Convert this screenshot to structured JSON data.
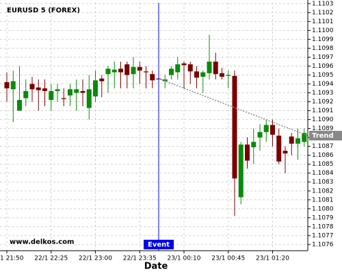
{
  "chart_data": {
    "type": "candlestick",
    "title": "EURUSD 5 (FOREX)",
    "watermark": "www.delkos.com",
    "x_label": "Date",
    "categories": [
      "22/1 21:50",
      null,
      null,
      null,
      null,
      null,
      null,
      "22/1 22:25",
      null,
      null,
      null,
      null,
      null,
      null,
      "22/1 23:00",
      null,
      null,
      null,
      null,
      null,
      null,
      "22/1 23:35",
      null,
      null,
      null,
      null,
      null,
      null,
      "23/1 00:10",
      null,
      null,
      null,
      null,
      null,
      null,
      "23/1 00:45",
      null,
      null,
      null,
      null,
      null,
      null,
      "23/1 01:20",
      null,
      null,
      null,
      null,
      null
    ],
    "open": [
      1.10942,
      1.10934,
      1.1091,
      1.10924,
      1.1094,
      1.10936,
      1.10935,
      1.10922,
      1.10932,
      1.10924,
      1.10927,
      1.1093,
      1.10932,
      1.10913,
      1.10926,
      1.10946,
      1.10951,
      1.10953,
      1.10957,
      1.10962,
      1.10951,
      1.10959,
      1.10954,
      1.10951,
      1.10946,
      1.10943,
      1.1095,
      1.10953,
      1.10963,
      1.10962,
      1.10954,
      1.10948,
      1.10952,
      1.10965,
      1.10952,
      1.10949,
      1.10949,
      1.10813,
      1.10872,
      1.10869,
      1.1088,
      1.10886,
      1.10894,
      1.10882,
      1.10865,
      1.10881,
      1.10873,
      1.10875
    ],
    "high": [
      1.10953,
      1.10955,
      1.1096,
      1.10945,
      1.10948,
      1.10945,
      1.10945,
      1.1094,
      1.1094,
      1.10935,
      1.1094,
      1.10945,
      1.10945,
      1.1095,
      1.10955,
      1.1095,
      1.1096,
      1.10965,
      1.10965,
      1.10965,
      1.1097,
      1.10965,
      1.1096,
      1.10955,
      1.10948,
      1.1095,
      1.1096,
      1.1097,
      1.10965,
      1.10965,
      1.1096,
      1.10955,
      1.10995,
      1.10975,
      1.10958,
      1.10955,
      1.10955,
      1.10875,
      1.1088,
      1.1089,
      1.10895,
      1.109,
      1.109,
      1.1089,
      1.1087,
      1.10885,
      1.1089,
      1.1089
    ],
    "low": [
      1.1092,
      1.10897,
      1.1091,
      1.10915,
      1.1092,
      1.1091,
      1.10915,
      1.1091,
      1.1092,
      1.10915,
      1.10915,
      1.1091,
      1.10915,
      1.109,
      1.1092,
      1.10925,
      1.1093,
      1.10935,
      1.10935,
      1.10935,
      1.10935,
      1.1094,
      1.10935,
      1.10935,
      1.10944,
      1.10935,
      1.10945,
      1.10945,
      1.10935,
      1.1094,
      1.10935,
      1.1093,
      1.10945,
      1.10945,
      1.10945,
      1.10935,
      1.10792,
      1.10805,
      1.10845,
      1.1085,
      1.10865,
      1.10875,
      1.1087,
      1.1085,
      1.1084,
      1.1086,
      1.10855,
      1.1087
    ],
    "close": [
      1.10935,
      1.10943,
      1.10922,
      1.10932,
      1.10934,
      1.10933,
      1.10932,
      1.10932,
      1.10934,
      1.10923,
      1.10934,
      1.10934,
      1.1093,
      1.10934,
      1.10944,
      1.10943,
      1.10957,
      1.10956,
      1.10953,
      1.1095,
      1.10959,
      1.10955,
      1.10953,
      1.10944,
      1.10945,
      1.10945,
      1.10957,
      1.10962,
      1.10961,
      1.10954,
      1.10947,
      1.10953,
      1.10965,
      1.10951,
      1.10948,
      1.1095,
      1.10834,
      1.10872,
      1.10854,
      1.10875,
      1.10886,
      1.10894,
      1.10883,
      1.10853,
      1.10862,
      1.10873,
      1.10879,
      1.10885
    ],
    "up_color": "#0a8a0a",
    "down_color": "#7a0000",
    "event": {
      "label": "Event",
      "at": 24,
      "color": "#0000ee"
    },
    "trend": {
      "label": "Trend",
      "values": [
        1.10946,
        1.10882
      ],
      "color": "#888888"
    },
    "ylim": [
      1.10753,
      1.11031
    ],
    "yticks": [
      1.1076,
      1.1077,
      1.1078,
      1.1079,
      {
        "value": 1.108,
        "label": "1.1080"
      },
      1.1081,
      1.1082,
      1.1083,
      1.1084,
      1.1085,
      1.1086,
      1.1087,
      1.1088,
      1.1089,
      {
        "value": 1.109,
        "label": "1.1090"
      },
      1.1091,
      1.1092,
      1.1093,
      1.1094,
      1.1095,
      1.1096,
      1.1097,
      1.1098,
      1.1099,
      {
        "value": 1.11,
        "label": "1.1100"
      },
      1.1101,
      1.1102,
      1.1103
    ],
    "grid": true
  }
}
